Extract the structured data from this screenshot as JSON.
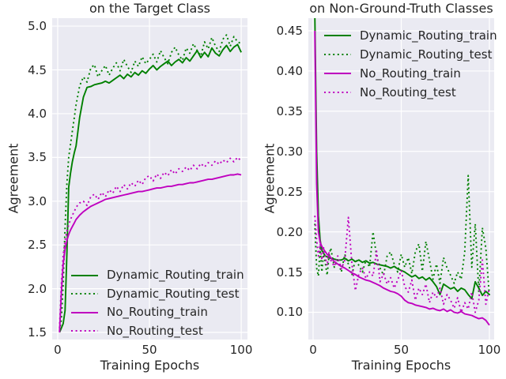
{
  "figure": {
    "background": "#ffffff",
    "axes_background": "#eaeaf2",
    "grid_color": "#ffffff",
    "text_color": "#262626",
    "green": "#008000",
    "magenta": "#bf00bf"
  },
  "chart_data": [
    {
      "type": "line",
      "title": "on the Target Class",
      "xlabel": "Training Epochs",
      "ylabel": "Agreement",
      "xlim": [
        -3.0,
        103.4
      ],
      "ylim": [
        1.419,
        5.091
      ],
      "grid": true,
      "xtick_values": [
        0,
        50,
        100
      ],
      "xtick_labels": [
        "0",
        "50",
        "100"
      ],
      "ytick_values": [
        1.5,
        2.0,
        2.5,
        3.0,
        3.5,
        4.0,
        4.5,
        5.0
      ],
      "ytick_labels": [
        "1.5",
        "2.0",
        "2.5",
        "3.0",
        "3.5",
        "4.0",
        "4.5",
        "5.0"
      ],
      "legend": {
        "loc": "lower left"
      },
      "epochs": [
        1,
        2,
        3,
        4,
        5,
        6,
        7,
        8,
        9,
        10,
        12,
        14,
        16,
        18,
        20,
        22,
        24,
        26,
        28,
        30,
        32,
        34,
        36,
        38,
        40,
        42,
        44,
        46,
        48,
        50,
        52,
        54,
        56,
        58,
        60,
        62,
        64,
        66,
        68,
        70,
        72,
        74,
        76,
        78,
        80,
        82,
        84,
        86,
        88,
        90,
        92,
        94,
        96,
        98,
        100
      ],
      "series": [
        {
          "name": "Dynamic_Routing_train",
          "color": "#008000",
          "style": "solid",
          "values": [
            1.5,
            1.55,
            1.6,
            1.75,
            2.4,
            3.16,
            3.32,
            3.45,
            3.55,
            3.63,
            3.96,
            4.19,
            4.3,
            4.31,
            4.33,
            4.34,
            4.35,
            4.37,
            4.35,
            4.38,
            4.41,
            4.44,
            4.4,
            4.45,
            4.42,
            4.47,
            4.44,
            4.49,
            4.46,
            4.51,
            4.55,
            4.5,
            4.54,
            4.57,
            4.6,
            4.55,
            4.59,
            4.62,
            4.58,
            4.64,
            4.6,
            4.66,
            4.72,
            4.64,
            4.7,
            4.65,
            4.75,
            4.69,
            4.66,
            4.73,
            4.78,
            4.71,
            4.76,
            4.79,
            4.7
          ]
        },
        {
          "name": "Dynamic_Routing_test",
          "color": "#008000",
          "style": "dotted",
          "values": [
            1.52,
            1.65,
            2.05,
            2.7,
            3.2,
            3.5,
            3.65,
            3.8,
            3.95,
            4.1,
            4.32,
            4.42,
            4.36,
            4.52,
            4.56,
            4.42,
            4.49,
            4.55,
            4.44,
            4.52,
            4.58,
            4.49,
            4.62,
            4.54,
            4.47,
            4.6,
            4.54,
            4.65,
            4.57,
            4.62,
            4.68,
            4.59,
            4.72,
            4.64,
            4.57,
            4.7,
            4.76,
            4.67,
            4.61,
            4.75,
            4.69,
            4.8,
            4.72,
            4.66,
            4.82,
            4.74,
            4.87,
            4.77,
            4.71,
            4.85,
            4.9,
            4.77,
            4.88,
            4.82,
            4.8
          ]
        },
        {
          "name": "No_Routing_train",
          "color": "#bf00bf",
          "style": "solid",
          "values": [
            1.5,
            1.95,
            2.28,
            2.45,
            2.55,
            2.62,
            2.67,
            2.71,
            2.75,
            2.79,
            2.84,
            2.88,
            2.91,
            2.94,
            2.96,
            2.98,
            3.0,
            3.02,
            3.03,
            3.04,
            3.05,
            3.06,
            3.07,
            3.08,
            3.09,
            3.1,
            3.11,
            3.11,
            3.12,
            3.13,
            3.14,
            3.15,
            3.15,
            3.16,
            3.17,
            3.17,
            3.18,
            3.19,
            3.19,
            3.2,
            3.21,
            3.21,
            3.22,
            3.23,
            3.24,
            3.25,
            3.25,
            3.26,
            3.27,
            3.28,
            3.29,
            3.3,
            3.3,
            3.31,
            3.3
          ]
        },
        {
          "name": "No_Routing_test",
          "color": "#bf00bf",
          "style": "dotted",
          "values": [
            1.55,
            2.05,
            2.38,
            2.55,
            2.66,
            2.73,
            2.79,
            2.84,
            2.88,
            2.93,
            2.98,
            3.0,
            2.95,
            3.05,
            3.08,
            3.02,
            3.1,
            3.05,
            3.13,
            3.09,
            3.17,
            3.11,
            3.19,
            3.14,
            3.21,
            3.17,
            3.24,
            3.19,
            3.27,
            3.29,
            3.23,
            3.31,
            3.26,
            3.33,
            3.29,
            3.36,
            3.31,
            3.37,
            3.34,
            3.39,
            3.35,
            3.41,
            3.37,
            3.43,
            3.39,
            3.44,
            3.41,
            3.46,
            3.42,
            3.47,
            3.44,
            3.49,
            3.45,
            3.5,
            3.46
          ]
        }
      ]
    },
    {
      "type": "line",
      "title": "on Non-Ground-Truth Classes",
      "xlabel": "Training Epochs",
      "ylabel": "Agreement",
      "xlim": [
        -2.69,
        102.7
      ],
      "ylim": [
        0.0661,
        0.4657
      ],
      "grid": true,
      "xtick_values": [
        0,
        50,
        100
      ],
      "xtick_labels": [
        "0",
        "50",
        "100"
      ],
      "ytick_values": [
        0.1,
        0.15,
        0.2,
        0.25,
        0.3,
        0.35,
        0.4,
        0.45
      ],
      "ytick_labels": [
        "0.10",
        "0.15",
        "0.20",
        "0.25",
        "0.30",
        "0.35",
        "0.40",
        "0.45"
      ],
      "legend": {
        "loc": "upper right"
      },
      "epochs": [
        1,
        2,
        3,
        4,
        5,
        6,
        7,
        8,
        9,
        10,
        12,
        14,
        16,
        18,
        20,
        22,
        24,
        26,
        28,
        30,
        32,
        34,
        36,
        38,
        40,
        42,
        44,
        46,
        48,
        50,
        52,
        54,
        56,
        58,
        60,
        62,
        64,
        66,
        68,
        70,
        72,
        74,
        76,
        78,
        80,
        82,
        84,
        86,
        88,
        90,
        92,
        94,
        96,
        98,
        100
      ],
      "series": [
        {
          "name": "Dynamic_Routing_train",
          "color": "#008000",
          "style": "solid",
          "values": [
            0.47,
            0.3,
            0.22,
            0.19,
            0.177,
            0.173,
            0.17,
            0.169,
            0.168,
            0.167,
            0.166,
            0.165,
            0.165,
            0.167,
            0.164,
            0.166,
            0.163,
            0.165,
            0.162,
            0.164,
            0.161,
            0.162,
            0.16,
            0.159,
            0.158,
            0.157,
            0.155,
            0.157,
            0.154,
            0.152,
            0.15,
            0.147,
            0.144,
            0.146,
            0.142,
            0.144,
            0.14,
            0.143,
            0.138,
            0.132,
            0.122,
            0.135,
            0.132,
            0.129,
            0.131,
            0.126,
            0.13,
            0.128,
            0.122,
            0.117,
            0.138,
            0.13,
            0.121,
            0.126,
            0.122
          ]
        },
        {
          "name": "Dynamic_Routing_test",
          "color": "#008000",
          "style": "dotted",
          "values": [
            0.21,
            0.155,
            0.145,
            0.18,
            0.15,
            0.175,
            0.16,
            0.146,
            0.17,
            0.18,
            0.156,
            0.165,
            0.15,
            0.172,
            0.16,
            0.146,
            0.166,
            0.158,
            0.15,
            0.165,
            0.156,
            0.2,
            0.17,
            0.155,
            0.146,
            0.17,
            0.175,
            0.16,
            0.15,
            0.172,
            0.156,
            0.168,
            0.148,
            0.175,
            0.185,
            0.151,
            0.188,
            0.165,
            0.141,
            0.16,
            0.136,
            0.168,
            0.155,
            0.146,
            0.136,
            0.15,
            0.141,
            0.175,
            0.27,
            0.156,
            0.21,
            0.125,
            0.205,
            0.18,
            0.12
          ]
        },
        {
          "name": "No_Routing_train",
          "color": "#bf00bf",
          "style": "solid",
          "values": [
            0.45,
            0.26,
            0.2,
            0.187,
            0.182,
            0.178,
            0.175,
            0.172,
            0.17,
            0.168,
            0.163,
            0.16,
            0.157,
            0.155,
            0.152,
            0.149,
            0.147,
            0.144,
            0.142,
            0.14,
            0.139,
            0.137,
            0.135,
            0.133,
            0.13,
            0.128,
            0.126,
            0.125,
            0.123,
            0.12,
            0.115,
            0.112,
            0.111,
            0.109,
            0.108,
            0.107,
            0.106,
            0.104,
            0.105,
            0.103,
            0.102,
            0.104,
            0.101,
            0.103,
            0.1,
            0.099,
            0.101,
            0.098,
            0.097,
            0.096,
            0.094,
            0.092,
            0.093,
            0.09,
            0.084
          ]
        },
        {
          "name": "No_Routing_test",
          "color": "#bf00bf",
          "style": "dotted",
          "values": [
            0.22,
            0.19,
            0.17,
            0.185,
            0.165,
            0.18,
            0.168,
            0.158,
            0.174,
            0.165,
            0.157,
            0.17,
            0.154,
            0.165,
            0.218,
            0.16,
            0.127,
            0.148,
            0.155,
            0.142,
            0.15,
            0.145,
            0.176,
            0.138,
            0.148,
            0.135,
            0.143,
            0.13,
            0.14,
            0.152,
            0.132,
            0.125,
            0.14,
            0.115,
            0.13,
            0.122,
            0.135,
            0.112,
            0.125,
            0.118,
            0.13,
            0.11,
            0.122,
            0.115,
            0.105,
            0.118,
            0.1,
            0.112,
            0.104,
            0.125,
            0.1,
            0.115,
            0.165,
            0.11,
            0.13
          ]
        }
      ]
    }
  ]
}
